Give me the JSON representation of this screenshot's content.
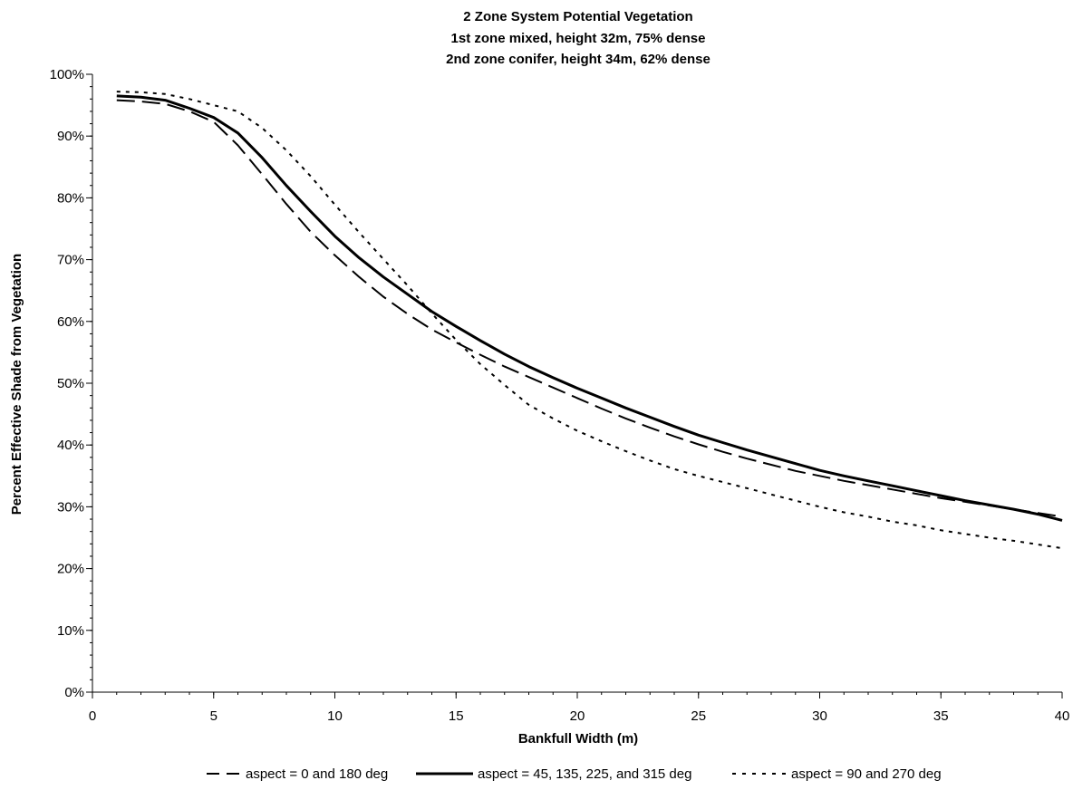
{
  "chart_data": {
    "type": "line",
    "title_lines": [
      "2 Zone System Potential Vegetation",
      "1st zone mixed, height 32m, 75% dense",
      "2nd zone conifer, height 34m, 62% dense"
    ],
    "xlabel": "Bankfull Width (m)",
    "ylabel": "Percent Effective Shade from Vegetation",
    "xlim": [
      0,
      40
    ],
    "ylim": [
      0,
      100
    ],
    "x_ticks": [
      0,
      5,
      10,
      15,
      20,
      25,
      30,
      35,
      40
    ],
    "x_tick_labels": [
      "0",
      "5",
      "10",
      "15",
      "20",
      "25",
      "30",
      "35",
      "40"
    ],
    "y_ticks": [
      0,
      10,
      20,
      30,
      40,
      50,
      60,
      70,
      80,
      90,
      100
    ],
    "y_tick_labels": [
      "0%",
      "10%",
      "20%",
      "30%",
      "40%",
      "50%",
      "60%",
      "70%",
      "80%",
      "90%",
      "100%"
    ],
    "grid": false,
    "legend_position": "bottom",
    "series": [
      {
        "name": "aspect = 0 and 180 deg",
        "style": "dashed",
        "color": "#000000",
        "x": [
          1,
          2,
          3,
          4,
          5,
          6,
          7,
          8,
          9,
          10,
          11,
          12,
          13,
          14,
          15,
          16,
          17,
          18,
          19,
          20,
          21,
          22,
          23,
          24,
          25,
          26,
          27,
          28,
          29,
          30,
          31,
          32,
          33,
          34,
          35,
          36,
          37,
          38,
          39,
          40
        ],
        "values": [
          95.8,
          95.6,
          95.2,
          94.0,
          92.3,
          88.5,
          83.8,
          79.0,
          74.5,
          70.7,
          67.2,
          64.0,
          61.2,
          58.7,
          56.6,
          54.6,
          52.7,
          51.0,
          49.3,
          47.6,
          45.9,
          44.3,
          42.8,
          41.4,
          40.1,
          38.9,
          37.8,
          36.8,
          35.8,
          35.0,
          34.2,
          33.5,
          32.8,
          32.1,
          31.4,
          30.8,
          30.2,
          29.6,
          29.0,
          28.4
        ]
      },
      {
        "name": "aspect = 45, 135, 225, and 315 deg",
        "style": "solid",
        "color": "#000000",
        "x": [
          1,
          2,
          3,
          4,
          5,
          6,
          7,
          8,
          9,
          10,
          11,
          12,
          13,
          14,
          15,
          16,
          17,
          18,
          19,
          20,
          21,
          22,
          23,
          24,
          25,
          26,
          27,
          28,
          29,
          30,
          31,
          32,
          33,
          34,
          35,
          36,
          37,
          38,
          39,
          40
        ],
        "values": [
          96.5,
          96.3,
          95.8,
          94.5,
          93.0,
          90.5,
          86.5,
          82.0,
          77.8,
          73.8,
          70.3,
          67.2,
          64.4,
          61.6,
          59.2,
          56.9,
          54.7,
          52.7,
          50.9,
          49.2,
          47.6,
          46.0,
          44.5,
          43.0,
          41.6,
          40.4,
          39.2,
          38.1,
          37.0,
          35.9,
          35.0,
          34.2,
          33.4,
          32.6,
          31.8,
          31.0,
          30.3,
          29.6,
          28.8,
          27.8
        ]
      },
      {
        "name": "aspect = 90 and 270 deg",
        "style": "dotted",
        "color": "#000000",
        "x": [
          1,
          2,
          3,
          4,
          5,
          6,
          7,
          8,
          9,
          10,
          11,
          12,
          13,
          14,
          15,
          16,
          17,
          18,
          19,
          20,
          21,
          22,
          23,
          24,
          25,
          26,
          27,
          28,
          29,
          30,
          31,
          32,
          33,
          34,
          35,
          36,
          37,
          38,
          39,
          40
        ],
        "values": [
          97.2,
          97.1,
          96.8,
          96.0,
          95.0,
          94.0,
          91.3,
          87.7,
          83.5,
          78.9,
          74.4,
          70.1,
          65.8,
          61.3,
          57.0,
          53.1,
          49.7,
          46.5,
          44.3,
          42.3,
          40.6,
          39.0,
          37.5,
          36.1,
          35.0,
          34.0,
          33.0,
          32.0,
          31.0,
          30.0,
          29.1,
          28.4,
          27.6,
          27.0,
          26.2,
          25.6,
          25.0,
          24.5,
          23.9,
          23.3
        ]
      }
    ]
  }
}
